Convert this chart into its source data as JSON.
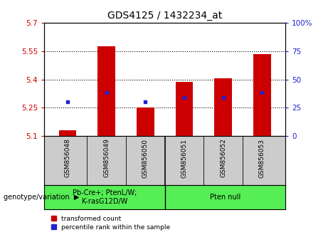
{
  "title": "GDS4125 / 1432234_at",
  "samples": [
    "GSM856048",
    "GSM856049",
    "GSM856050",
    "GSM856051",
    "GSM856052",
    "GSM856053"
  ],
  "bar_values": [
    5.13,
    5.575,
    5.25,
    5.385,
    5.405,
    5.535
  ],
  "percentile_values": [
    5.283,
    5.33,
    5.283,
    5.305,
    5.305,
    5.33
  ],
  "bar_bottom": 5.1,
  "ylim": [
    5.1,
    5.7
  ],
  "yticks": [
    5.1,
    5.25,
    5.4,
    5.55,
    5.7
  ],
  "ytick_labels": [
    "5.1",
    "5.25",
    "5.4",
    "5.55",
    "5.7"
  ],
  "grid_lines": [
    5.25,
    5.4,
    5.55
  ],
  "right_yticks": [
    0,
    25,
    50,
    75,
    100
  ],
  "right_ylim": [
    0,
    100
  ],
  "bar_color": "#cc0000",
  "percentile_color": "#2222cc",
  "bar_width": 0.45,
  "group1_label": "Pb-Cre+; PtenL/W;\nK-rasG12D/W",
  "group2_label": "Pten null",
  "group_color": "#55ee55",
  "sample_bg_color": "#cccccc",
  "legend_red": "transformed count",
  "legend_blue": "percentile rank within the sample",
  "genotype_label": "genotype/variation",
  "title_fontsize": 10,
  "tick_fontsize": 7.5,
  "sample_fontsize": 6.5,
  "group_fontsize": 7,
  "bar_color_left": "#cc0000",
  "tick_color_right": "#2222cc"
}
